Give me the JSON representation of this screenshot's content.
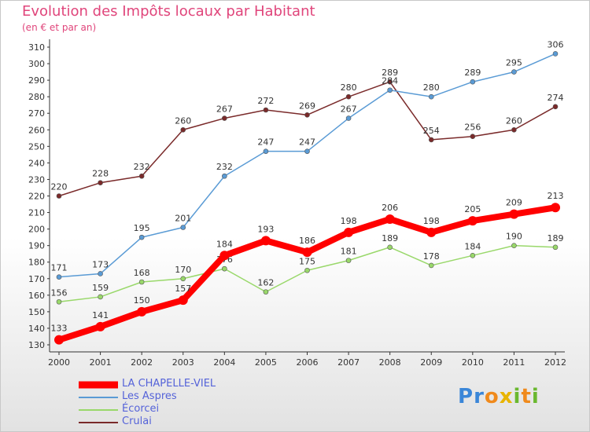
{
  "title": "Evolution des Impôts locaux par Habitant",
  "subtitle": "(en € et par an)",
  "logo": {
    "letters": [
      "P",
      "r",
      "o",
      "x",
      "i",
      "t",
      "i"
    ],
    "colors": [
      "#3a86d8",
      "#3a86d8",
      "#f08a1c",
      "#e8b400",
      "#6ab82f",
      "#f08a1c",
      "#6ab82f"
    ]
  },
  "chart_data": {
    "type": "line",
    "x": [
      2000,
      2001,
      2002,
      2003,
      2004,
      2005,
      2006,
      2007,
      2008,
      2009,
      2010,
      2011,
      2012
    ],
    "ylim": [
      130,
      310
    ],
    "yticks": [
      130,
      140,
      150,
      160,
      170,
      180,
      190,
      200,
      210,
      220,
      230,
      240,
      250,
      260,
      270,
      280,
      290,
      300,
      310
    ],
    "grid": false,
    "legend": "bottom-left",
    "series": [
      {
        "name": "LA CHAPELLE-VIEL",
        "color": "#ff0000",
        "values": [
          133,
          141,
          150,
          157,
          184,
          193,
          186,
          198,
          206,
          198,
          205,
          209,
          213
        ]
      },
      {
        "name": "Les Aspres",
        "color": "#5a9bd5",
        "values": [
          171,
          173,
          195,
          201,
          232,
          247,
          247,
          267,
          284,
          280,
          289,
          295,
          306
        ]
      },
      {
        "name": "Écorcei",
        "color": "#99d86a",
        "values": [
          156,
          159,
          168,
          170,
          176,
          162,
          175,
          181,
          189,
          178,
          184,
          190,
          189
        ]
      },
      {
        "name": "Crulai",
        "color": "#7a2a2a",
        "values": [
          220,
          228,
          232,
          260,
          267,
          272,
          269,
          280,
          289,
          254,
          256,
          260,
          274
        ]
      }
    ]
  }
}
